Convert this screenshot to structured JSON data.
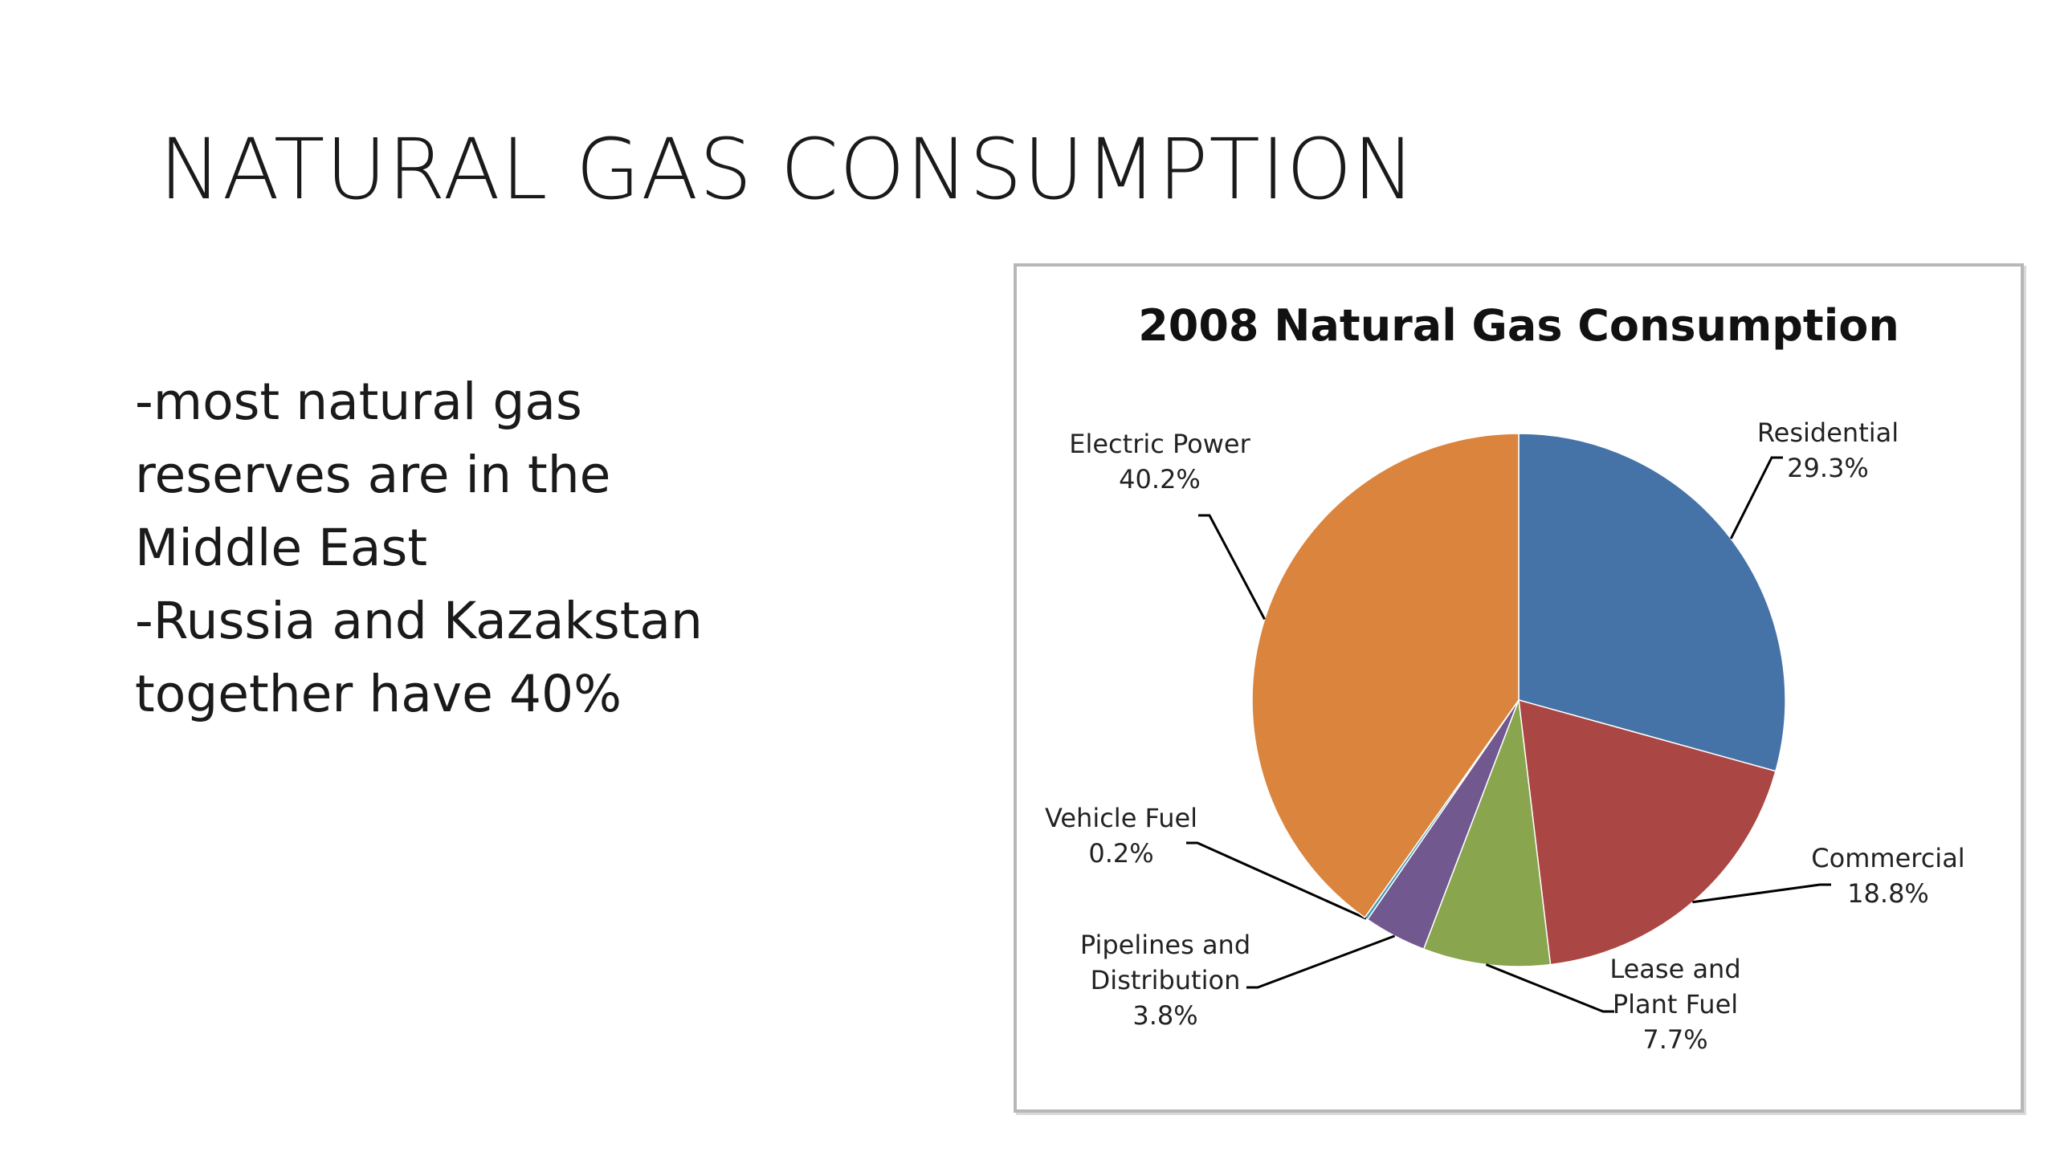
{
  "slide": {
    "title": "NATURAL GAS CONSUMPTION",
    "bullets": [
      "-most natural gas",
      "reserves are in the",
      "Middle East",
      "-Russia and Kazakstan",
      "together have 40%"
    ]
  },
  "chart_data": {
    "type": "pie",
    "title": "2008 Natural Gas Consumption",
    "slices": [
      {
        "name": "Residential",
        "value": 29.3,
        "label_lines": [
          "Residential",
          "29.3%"
        ],
        "color": "#4572A7"
      },
      {
        "name": "Commercial",
        "value": 18.8,
        "label_lines": [
          "Commercial",
          "18.8%"
        ],
        "color": "#AA4643"
      },
      {
        "name": "Lease and Plant Fuel",
        "value": 7.7,
        "label_lines": [
          "Lease and",
          "Plant Fuel",
          "7.7%"
        ],
        "color": "#89A54E"
      },
      {
        "name": "Pipelines and Distribution",
        "value": 3.8,
        "label_lines": [
          "Pipelines and",
          "Distribution",
          "3.8%"
        ],
        "color": "#71588F"
      },
      {
        "name": "Vehicle Fuel",
        "value": 0.2,
        "label_lines": [
          "Vehicle Fuel",
          "0.2%"
        ],
        "color": "#4198AF"
      },
      {
        "name": "Electric Power",
        "value": 40.2,
        "label_lines": [
          "Electric Power",
          "40.2%"
        ],
        "color": "#DB843D"
      }
    ]
  }
}
